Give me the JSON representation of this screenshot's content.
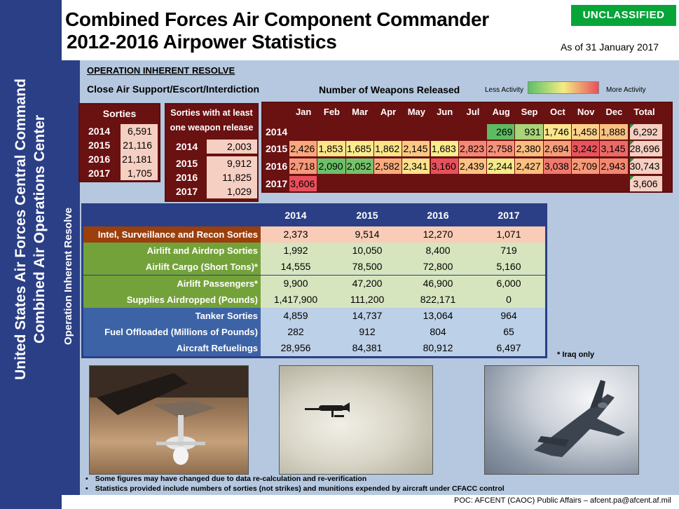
{
  "header": {
    "title_line1": "Combined Forces Air Component Commander",
    "title_line2": "2012-2016 Airpower Statistics",
    "classification": "UNCLASSIFIED",
    "as_of": "As of 31 January 2017"
  },
  "left_bar": {
    "line1": "United States Air Forces Central Command",
    "line2": "Combined Air Operations Center",
    "operation_vertical": "Operation Inherent Resolve"
  },
  "section": {
    "operation": "OPERATION INHERENT RESOLVE",
    "subhead": "Close Air Support/Escort/Interdiction",
    "weapons_title": "Number of Weapons Released",
    "less_activity": "Less Activity",
    "more_activity": "More Activity"
  },
  "sorties": {
    "title": "Sorties",
    "rows": [
      {
        "year": "2014",
        "value": "6,591"
      },
      {
        "year": "2015",
        "value": "21,116"
      },
      {
        "year": "2016",
        "value": "21,181"
      },
      {
        "year": "2017",
        "value": "1,705"
      }
    ]
  },
  "weapon_sorties": {
    "title_line1": "Sorties with at least",
    "title_line2": "one weapon release",
    "rows": [
      {
        "year": "2014",
        "value": "2,003"
      },
      {
        "year": "2015",
        "value": "9,912"
      },
      {
        "year": "2016",
        "value": "11,825"
      },
      {
        "year": "2017",
        "value": "1,029"
      }
    ]
  },
  "weapons": {
    "months": [
      "Jan",
      "Feb",
      "Mar",
      "Apr",
      "May",
      "Jun",
      "Jul",
      "Aug",
      "Sep",
      "Oct",
      "Nov",
      "Dec"
    ],
    "total_label": "Total",
    "rows": [
      {
        "year": "2014",
        "values": [
          "",
          "",
          "",
          "",
          "",
          "",
          "",
          "269",
          "931",
          "1,746",
          "1,458",
          "1,888"
        ],
        "colors": [
          "",
          "",
          "",
          "",
          "",
          "",
          "",
          "#5dbb63",
          "#a9d47a",
          "#fde58c",
          "#fcd08a",
          "#fac182"
        ],
        "total": "6,292"
      },
      {
        "year": "2015",
        "values": [
          "2,426",
          "1,853",
          "1,685",
          "1,862",
          "2,145",
          "1,683",
          "2,823",
          "2,758",
          "2,380",
          "2,694",
          "3,242",
          "3,145"
        ],
        "colors": [
          "#f9a87e",
          "#fde68a",
          "#fcec8c",
          "#fde58a",
          "#fbc983",
          "#fcec8c",
          "#f58874",
          "#f6917a",
          "#fbbd80",
          "#f79d78",
          "#e9545c",
          "#ec6a66"
        ],
        "total": "28,696"
      },
      {
        "year": "2016",
        "values": [
          "2,718",
          "2,090",
          "2,052",
          "2,582",
          "2,341",
          "3,160",
          "2,439",
          "2,244",
          "2,427",
          "3,038",
          "2,709",
          "2,943"
        ],
        "colors": [
          "#f69879",
          "#6cc068",
          "#74c269",
          "#f9ab7e",
          "#fde28b",
          "#e8525c",
          "#fcc282",
          "#f4ea8a",
          "#fbc080",
          "#ef7a6d",
          "#f69a79",
          "#f38870"
        ],
        "total": "30,743"
      },
      {
        "year": "2017",
        "values": [
          "3,606",
          "",
          "",
          "",
          "",
          "",
          "",
          "",
          "",
          "",
          "",
          ""
        ],
        "colors": [
          "#e84f5b",
          "",
          "",
          "",
          "",
          "",
          "",
          "",
          "",
          "",
          "",
          ""
        ],
        "total": "3,606"
      }
    ]
  },
  "stats": {
    "years": [
      "2014",
      "2015",
      "2016",
      "2017"
    ],
    "rows": [
      {
        "label": "Intel, Surveillance and Recon Sorties",
        "values": [
          "2,373",
          "9,514",
          "12,270",
          "1,071"
        ],
        "label_color": "#9b3f0d",
        "value_color": "#f8ccb6"
      },
      {
        "label": "Airlift and Airdrop Sorties",
        "values": [
          "1,992",
          "10,050",
          "8,400",
          "719"
        ],
        "label_color": "#74a23a",
        "value_color": "#d7e5bf"
      },
      {
        "label": "Airlift Cargo (Short Tons)*",
        "values": [
          "14,555",
          "78,500",
          "72,800",
          "5,160"
        ],
        "label_color": "#74a23a",
        "value_color": "#d7e5bf"
      },
      {
        "label": "Airlift Passengers*",
        "values": [
          "9,900",
          "47,200",
          "46,900",
          "6,000"
        ],
        "label_color": "#74a23a",
        "value_color": "#d7e5bf"
      },
      {
        "label": "Supplies Airdropped (Pounds)",
        "values": [
          "1,417,900",
          "111,200",
          "822,171",
          "0"
        ],
        "label_color": "#74a23a",
        "value_color": "#d7e5bf"
      },
      {
        "label": "Tanker Sorties",
        "values": [
          "4,859",
          "14,737",
          "13,064",
          "964"
        ],
        "label_color": "#3d63a7",
        "value_color": "#bcd0e7"
      },
      {
        "label": "Fuel Offloaded (Millions of Pounds)",
        "values": [
          "282",
          "912",
          "804",
          "65"
        ],
        "label_color": "#3d63a7",
        "value_color": "#bcd0e7"
      },
      {
        "label": "Aircraft Refuelings",
        "values": [
          "28,956",
          "84,381",
          "80,912",
          "6,497"
        ],
        "label_color": "#3d63a7",
        "value_color": "#bcd0e7"
      }
    ],
    "note": "* Iraq only"
  },
  "footer": {
    "bullets": [
      "Some figures may have changed due to data re-calculation and re-verification",
      "Statistics provided include numbers of sorties (not strikes) and munitions expended by aircraft under CFACC control"
    ],
    "poc": "POC:  AFCENT (CAOC) Public Affairs – afcent.pa@afcent.af.mil"
  }
}
